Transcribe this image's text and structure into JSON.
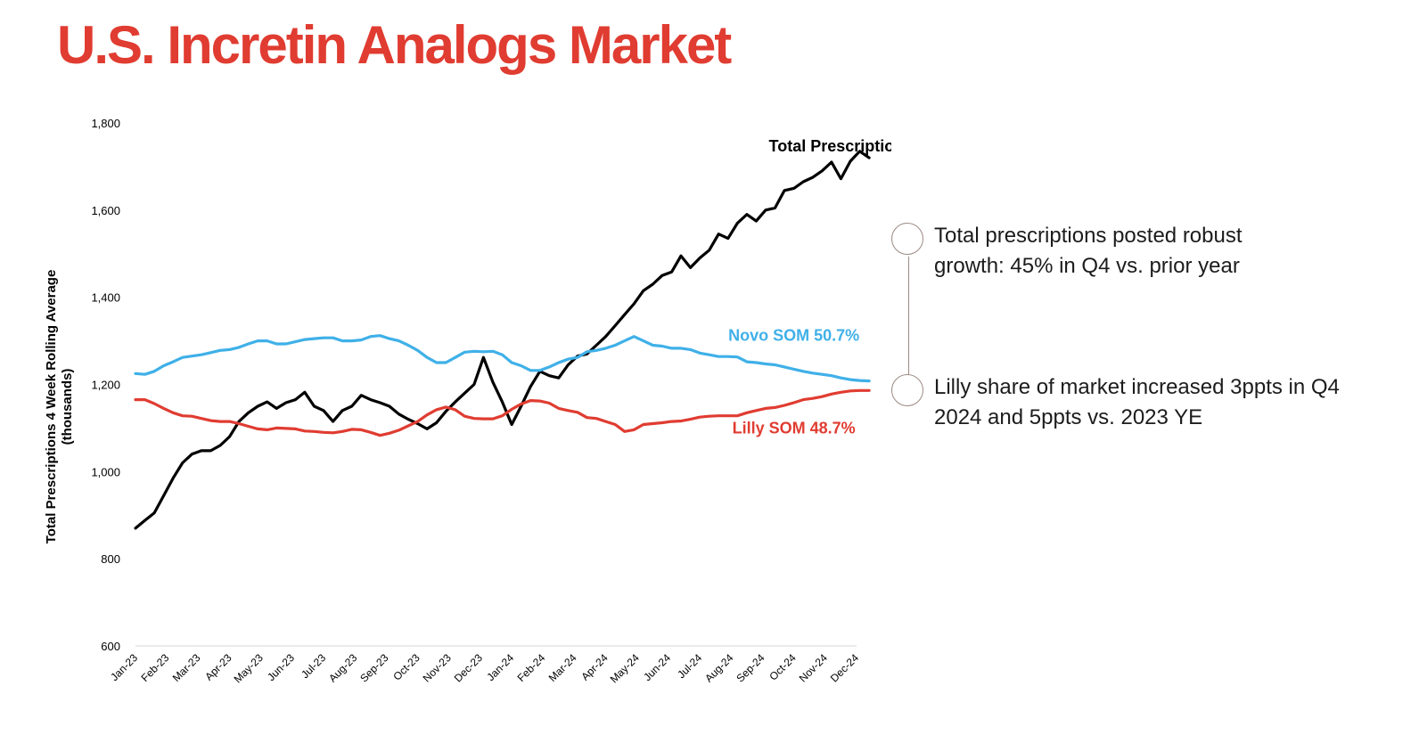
{
  "slide": {
    "title": "U.S. Incretin Analogs Market",
    "title_color": "#e03c31"
  },
  "callouts": [
    {
      "text": "Total prescriptions posted robust growth: 45% in Q4 vs. prior year"
    },
    {
      "text": "Lilly share of market increased 3ppts in Q4 2024 and 5ppts vs. 2023 YE"
    }
  ],
  "chart_data": {
    "type": "line",
    "ylabel": "Total Prescriptions 4 Week Rolling Average (thousands)",
    "ylim": [
      600,
      1800
    ],
    "yticks": [
      600,
      800,
      1000,
      1200,
      1400,
      1600,
      1800
    ],
    "ytick_labels": [
      "600",
      "800",
      "1,000",
      "1,200",
      "1,400",
      "1,600",
      "1,800"
    ],
    "categories": [
      "Jan-23",
      "Feb-23",
      "Mar-23",
      "Apr-23",
      "May-23",
      "Jun-23",
      "Jul-23",
      "Aug-23",
      "Sep-23",
      "Oct-23",
      "Nov-23",
      "Dec-23",
      "Jan-24",
      "Feb-24",
      "Mar-24",
      "Apr-24",
      "May-24",
      "Jun-24",
      "Jul-24",
      "Aug-24",
      "Sep-24",
      "Oct-24",
      "Nov-24",
      "Dec-24"
    ],
    "grid": false,
    "series": [
      {
        "name": "Total Prescriptions",
        "color": "#000000",
        "points": [
          [
            0,
            870
          ],
          [
            0.3,
            888
          ],
          [
            0.6,
            905
          ],
          [
            0.9,
            945
          ],
          [
            1.2,
            985
          ],
          [
            1.5,
            1020
          ],
          [
            1.8,
            1040
          ],
          [
            2.1,
            1048
          ],
          [
            2.4,
            1048
          ],
          [
            2.7,
            1060
          ],
          [
            3.0,
            1080
          ],
          [
            3.3,
            1115
          ],
          [
            3.6,
            1135
          ],
          [
            3.9,
            1150
          ],
          [
            4.2,
            1160
          ],
          [
            4.5,
            1145
          ],
          [
            4.8,
            1158
          ],
          [
            5.1,
            1165
          ],
          [
            5.4,
            1182
          ],
          [
            5.7,
            1150
          ],
          [
            6.0,
            1140
          ],
          [
            6.3,
            1115
          ],
          [
            6.6,
            1140
          ],
          [
            6.9,
            1150
          ],
          [
            7.2,
            1175
          ],
          [
            7.5,
            1165
          ],
          [
            7.8,
            1158
          ],
          [
            8.1,
            1150
          ],
          [
            8.4,
            1132
          ],
          [
            8.7,
            1120
          ],
          [
            9.0,
            1110
          ],
          [
            9.3,
            1098
          ],
          [
            9.6,
            1112
          ],
          [
            9.9,
            1138
          ],
          [
            10.2,
            1160
          ],
          [
            10.5,
            1180
          ],
          [
            10.8,
            1200
          ],
          [
            11.1,
            1262
          ],
          [
            11.4,
            1205
          ],
          [
            11.7,
            1160
          ],
          [
            12.0,
            1108
          ],
          [
            12.3,
            1150
          ],
          [
            12.6,
            1195
          ],
          [
            12.9,
            1230
          ],
          [
            13.2,
            1220
          ],
          [
            13.5,
            1215
          ],
          [
            13.8,
            1245
          ],
          [
            14.1,
            1265
          ],
          [
            14.4,
            1270
          ],
          [
            14.7,
            1290
          ],
          [
            15.0,
            1310
          ],
          [
            15.3,
            1335
          ],
          [
            15.6,
            1360
          ],
          [
            15.9,
            1385
          ],
          [
            16.2,
            1415
          ],
          [
            16.5,
            1430
          ],
          [
            16.8,
            1450
          ],
          [
            17.1,
            1458
          ],
          [
            17.4,
            1495
          ],
          [
            17.7,
            1468
          ],
          [
            18.0,
            1490
          ],
          [
            18.3,
            1508
          ],
          [
            18.6,
            1545
          ],
          [
            18.9,
            1535
          ],
          [
            19.2,
            1570
          ],
          [
            19.5,
            1590
          ],
          [
            19.8,
            1575
          ],
          [
            20.1,
            1600
          ],
          [
            20.4,
            1605
          ],
          [
            20.7,
            1645
          ],
          [
            21.0,
            1650
          ],
          [
            21.3,
            1665
          ],
          [
            21.6,
            1675
          ],
          [
            21.9,
            1690
          ],
          [
            22.2,
            1710
          ],
          [
            22.5,
            1672
          ],
          [
            22.8,
            1712
          ],
          [
            23.1,
            1735
          ],
          [
            23.4,
            1720
          ]
        ]
      },
      {
        "name": "Novo SOM 50.7%",
        "color": "#3fb0e8",
        "points": [
          [
            0,
            1225
          ],
          [
            0.3,
            1223
          ],
          [
            0.6,
            1230
          ],
          [
            0.9,
            1243
          ],
          [
            1.2,
            1252
          ],
          [
            1.5,
            1262
          ],
          [
            1.8,
            1265
          ],
          [
            2.1,
            1268
          ],
          [
            2.4,
            1273
          ],
          [
            2.7,
            1278
          ],
          [
            3.0,
            1280
          ],
          [
            3.3,
            1285
          ],
          [
            3.6,
            1293
          ],
          [
            3.9,
            1300
          ],
          [
            4.2,
            1300
          ],
          [
            4.5,
            1293
          ],
          [
            4.8,
            1293
          ],
          [
            5.1,
            1298
          ],
          [
            5.4,
            1303
          ],
          [
            5.7,
            1305
          ],
          [
            6.0,
            1307
          ],
          [
            6.3,
            1307
          ],
          [
            6.6,
            1300
          ],
          [
            6.9,
            1300
          ],
          [
            7.2,
            1302
          ],
          [
            7.5,
            1310
          ],
          [
            7.8,
            1312
          ],
          [
            8.1,
            1305
          ],
          [
            8.4,
            1300
          ],
          [
            8.7,
            1290
          ],
          [
            9.0,
            1278
          ],
          [
            9.3,
            1262
          ],
          [
            9.6,
            1250
          ],
          [
            9.9,
            1250
          ],
          [
            10.2,
            1262
          ],
          [
            10.5,
            1274
          ],
          [
            10.8,
            1276
          ],
          [
            11.1,
            1275
          ],
          [
            11.4,
            1276
          ],
          [
            11.7,
            1268
          ],
          [
            12.0,
            1250
          ],
          [
            12.3,
            1243
          ],
          [
            12.6,
            1232
          ],
          [
            12.9,
            1232
          ],
          [
            13.2,
            1240
          ],
          [
            13.5,
            1250
          ],
          [
            13.8,
            1258
          ],
          [
            14.1,
            1262
          ],
          [
            14.4,
            1275
          ],
          [
            14.7,
            1278
          ],
          [
            15.0,
            1283
          ],
          [
            15.3,
            1290
          ],
          [
            15.6,
            1300
          ],
          [
            15.9,
            1310
          ],
          [
            16.2,
            1300
          ],
          [
            16.5,
            1290
          ],
          [
            16.8,
            1288
          ],
          [
            17.1,
            1283
          ],
          [
            17.4,
            1283
          ],
          [
            17.7,
            1280
          ],
          [
            18.0,
            1272
          ],
          [
            18.3,
            1268
          ],
          [
            18.6,
            1264
          ],
          [
            18.9,
            1264
          ],
          [
            19.2,
            1263
          ],
          [
            19.5,
            1252
          ],
          [
            19.8,
            1250
          ],
          [
            20.1,
            1247
          ],
          [
            20.4,
            1245
          ],
          [
            20.7,
            1240
          ],
          [
            21.0,
            1235
          ],
          [
            21.3,
            1230
          ],
          [
            21.6,
            1226
          ],
          [
            21.9,
            1223
          ],
          [
            22.2,
            1220
          ],
          [
            22.5,
            1215
          ],
          [
            22.8,
            1211
          ],
          [
            23.1,
            1209
          ],
          [
            23.4,
            1208
          ]
        ]
      },
      {
        "name": "Lilly SOM 48.7%",
        "color": "#e03c31",
        "points": [
          [
            0,
            1165
          ],
          [
            0.3,
            1165
          ],
          [
            0.6,
            1156
          ],
          [
            0.9,
            1145
          ],
          [
            1.2,
            1135
          ],
          [
            1.5,
            1128
          ],
          [
            1.8,
            1127
          ],
          [
            2.1,
            1122
          ],
          [
            2.4,
            1117
          ],
          [
            2.7,
            1115
          ],
          [
            3.0,
            1115
          ],
          [
            3.3,
            1110
          ],
          [
            3.6,
            1104
          ],
          [
            3.9,
            1098
          ],
          [
            4.2,
            1096
          ],
          [
            4.5,
            1100
          ],
          [
            4.8,
            1099
          ],
          [
            5.1,
            1098
          ],
          [
            5.4,
            1093
          ],
          [
            5.7,
            1092
          ],
          [
            6.0,
            1090
          ],
          [
            6.3,
            1089
          ],
          [
            6.6,
            1092
          ],
          [
            6.9,
            1097
          ],
          [
            7.2,
            1096
          ],
          [
            7.5,
            1090
          ],
          [
            7.8,
            1083
          ],
          [
            8.1,
            1088
          ],
          [
            8.4,
            1095
          ],
          [
            8.7,
            1105
          ],
          [
            9.0,
            1115
          ],
          [
            9.3,
            1130
          ],
          [
            9.6,
            1142
          ],
          [
            9.9,
            1148
          ],
          [
            10.2,
            1142
          ],
          [
            10.5,
            1127
          ],
          [
            10.8,
            1122
          ],
          [
            11.1,
            1121
          ],
          [
            11.4,
            1121
          ],
          [
            11.7,
            1128
          ],
          [
            12.0,
            1143
          ],
          [
            12.3,
            1155
          ],
          [
            12.6,
            1163
          ],
          [
            12.9,
            1162
          ],
          [
            13.2,
            1157
          ],
          [
            13.5,
            1145
          ],
          [
            13.8,
            1140
          ],
          [
            14.1,
            1136
          ],
          [
            14.4,
            1124
          ],
          [
            14.7,
            1122
          ],
          [
            15.0,
            1115
          ],
          [
            15.3,
            1108
          ],
          [
            15.6,
            1092
          ],
          [
            15.9,
            1096
          ],
          [
            16.2,
            1108
          ],
          [
            16.5,
            1110
          ],
          [
            16.8,
            1112
          ],
          [
            17.1,
            1115
          ],
          [
            17.4,
            1116
          ],
          [
            17.7,
            1120
          ],
          [
            18.0,
            1125
          ],
          [
            18.3,
            1127
          ],
          [
            18.6,
            1128
          ],
          [
            18.9,
            1128
          ],
          [
            19.2,
            1128
          ],
          [
            19.5,
            1135
          ],
          [
            19.8,
            1140
          ],
          [
            20.1,
            1145
          ],
          [
            20.4,
            1147
          ],
          [
            20.7,
            1152
          ],
          [
            21.0,
            1158
          ],
          [
            21.3,
            1165
          ],
          [
            21.6,
            1168
          ],
          [
            21.9,
            1172
          ],
          [
            22.2,
            1178
          ],
          [
            22.5,
            1182
          ],
          [
            22.8,
            1185
          ],
          [
            23.1,
            1186
          ],
          [
            23.4,
            1186
          ]
        ]
      }
    ],
    "annotations": [
      {
        "text": "Total Prescriptions",
        "color": "#000000",
        "at": [
          22.5,
          1735
        ]
      },
      {
        "text": "Novo SOM 50.7%",
        "color": "#3fb0e8",
        "at": [
          21.0,
          1300
        ]
      },
      {
        "text": "Lilly SOM 48.7%",
        "color": "#e03c31",
        "at": [
          21.0,
          1088
        ]
      }
    ]
  }
}
